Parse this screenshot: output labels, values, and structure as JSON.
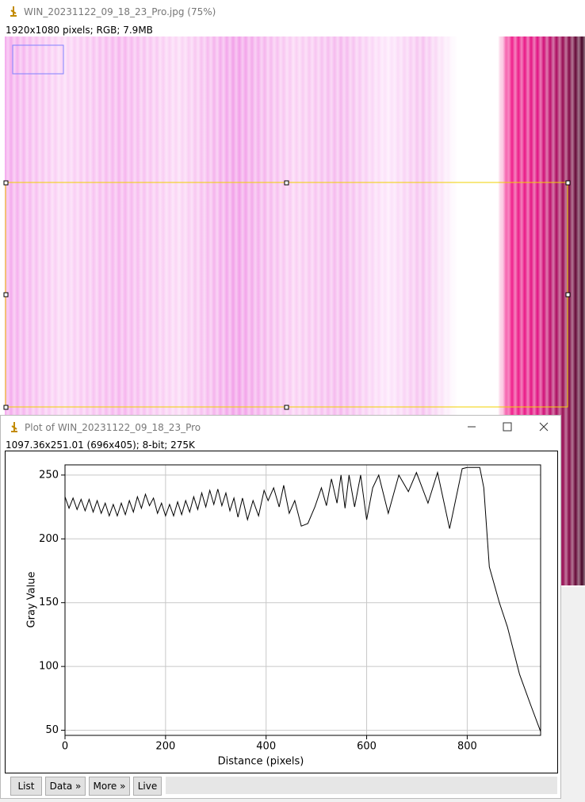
{
  "image_window": {
    "title": "WIN_20231122_09_18_23_Pro.jpg (75%)",
    "info": "1920x1080 pixels; RGB; 7.9MB"
  },
  "plot_window": {
    "title": "Plot of WIN_20231122_09_18_23_Pro",
    "info": "1097.36x251.01  (696x405); 8-bit; 275K",
    "buttons": [
      "List",
      "Data »",
      "More »",
      "Live"
    ]
  },
  "chart_data": {
    "type": "line",
    "xlabel": "Distance (pixels)",
    "ylabel": "Gray Value",
    "color": "#000000",
    "grid": true,
    "xlim": [
      0,
      946
    ],
    "ylim": [
      46,
      258
    ],
    "xticks": [
      0,
      200,
      400,
      600,
      800
    ],
    "yticks": [
      50,
      100,
      150,
      200,
      250
    ],
    "x": [
      0,
      8,
      16,
      24,
      32,
      40,
      48,
      56,
      64,
      72,
      80,
      88,
      96,
      104,
      112,
      120,
      128,
      136,
      144,
      152,
      160,
      168,
      176,
      184,
      192,
      200,
      208,
      216,
      224,
      232,
      240,
      248,
      256,
      264,
      272,
      280,
      288,
      296,
      304,
      312,
      320,
      328,
      336,
      344,
      353,
      363,
      374,
      385,
      396,
      404,
      415,
      426,
      435,
      446,
      457,
      470,
      483,
      497,
      510,
      520,
      530,
      541,
      549,
      557,
      565,
      576,
      588,
      600,
      612,
      624,
      643,
      664,
      683,
      699,
      722,
      741,
      765,
      790,
      800,
      825,
      833,
      844,
      864,
      880,
      904,
      927,
      946
    ],
    "values": [
      233,
      224,
      232,
      223,
      231,
      222,
      231,
      221,
      230,
      220,
      228,
      218,
      227,
      218,
      228,
      219,
      230,
      221,
      233,
      224,
      235,
      226,
      232,
      220,
      228,
      218,
      227,
      218,
      229,
      219,
      230,
      221,
      233,
      223,
      236,
      225,
      238,
      227,
      239,
      226,
      236,
      222,
      232,
      217,
      232,
      215,
      230,
      218,
      238,
      230,
      240,
      225,
      242,
      220,
      230,
      210,
      212,
      225,
      240,
      226,
      247,
      228,
      250,
      224,
      250,
      225,
      250,
      215,
      240,
      250,
      220,
      250,
      237,
      252,
      228,
      252,
      208,
      255,
      256,
      256,
      240,
      178,
      150,
      131,
      94,
      69,
      49
    ]
  }
}
